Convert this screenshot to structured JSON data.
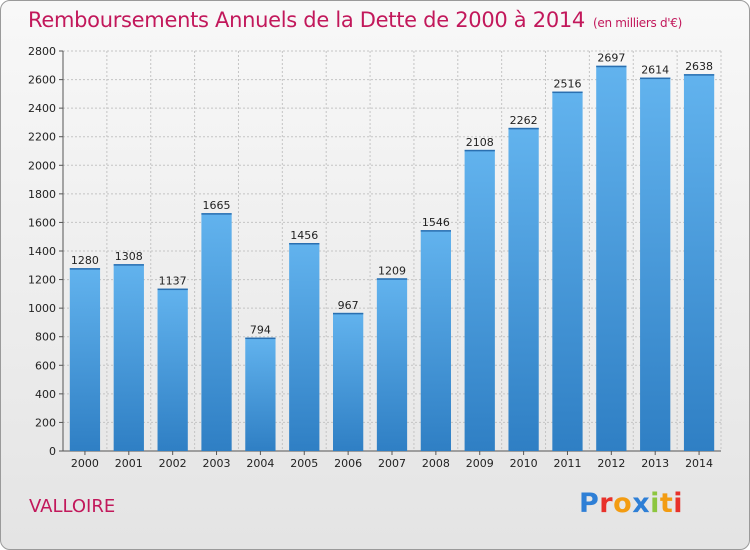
{
  "title": "Remboursements Annuels de la Dette de 2000 à 2014",
  "subtitle": "(en milliers d'€)",
  "commune": "VALLOIRE",
  "logo": {
    "text": "Proxiti",
    "colors": [
      "#2e7fd6",
      "#e8312a",
      "#f39c12",
      "#2e7fd6",
      "#8dc63f",
      "#f39c12",
      "#e8312a"
    ]
  },
  "chart_data": {
    "type": "bar",
    "title": "Remboursements Annuels de la Dette de 2000 à 2014",
    "subtitle": "(en milliers d'€)",
    "xlabel": "",
    "ylabel": "",
    "categories": [
      "2000",
      "2001",
      "2002",
      "2003",
      "2004",
      "2005",
      "2006",
      "2007",
      "2008",
      "2009",
      "2010",
      "2011",
      "2012",
      "2013",
      "2014"
    ],
    "values": [
      1280,
      1308,
      1137,
      1665,
      794,
      1456,
      967,
      1209,
      1546,
      2108,
      2262,
      2516,
      2697,
      2614,
      2638
    ],
    "ylim": [
      0,
      2800
    ],
    "yticks": [
      0,
      200,
      400,
      600,
      800,
      1000,
      1200,
      1400,
      1600,
      1800,
      2000,
      2200,
      2400,
      2600,
      2800
    ],
    "grid": true,
    "bar_color": "#3c8fd6",
    "bar_color_light": "#5fb0ec",
    "legend": "none"
  }
}
